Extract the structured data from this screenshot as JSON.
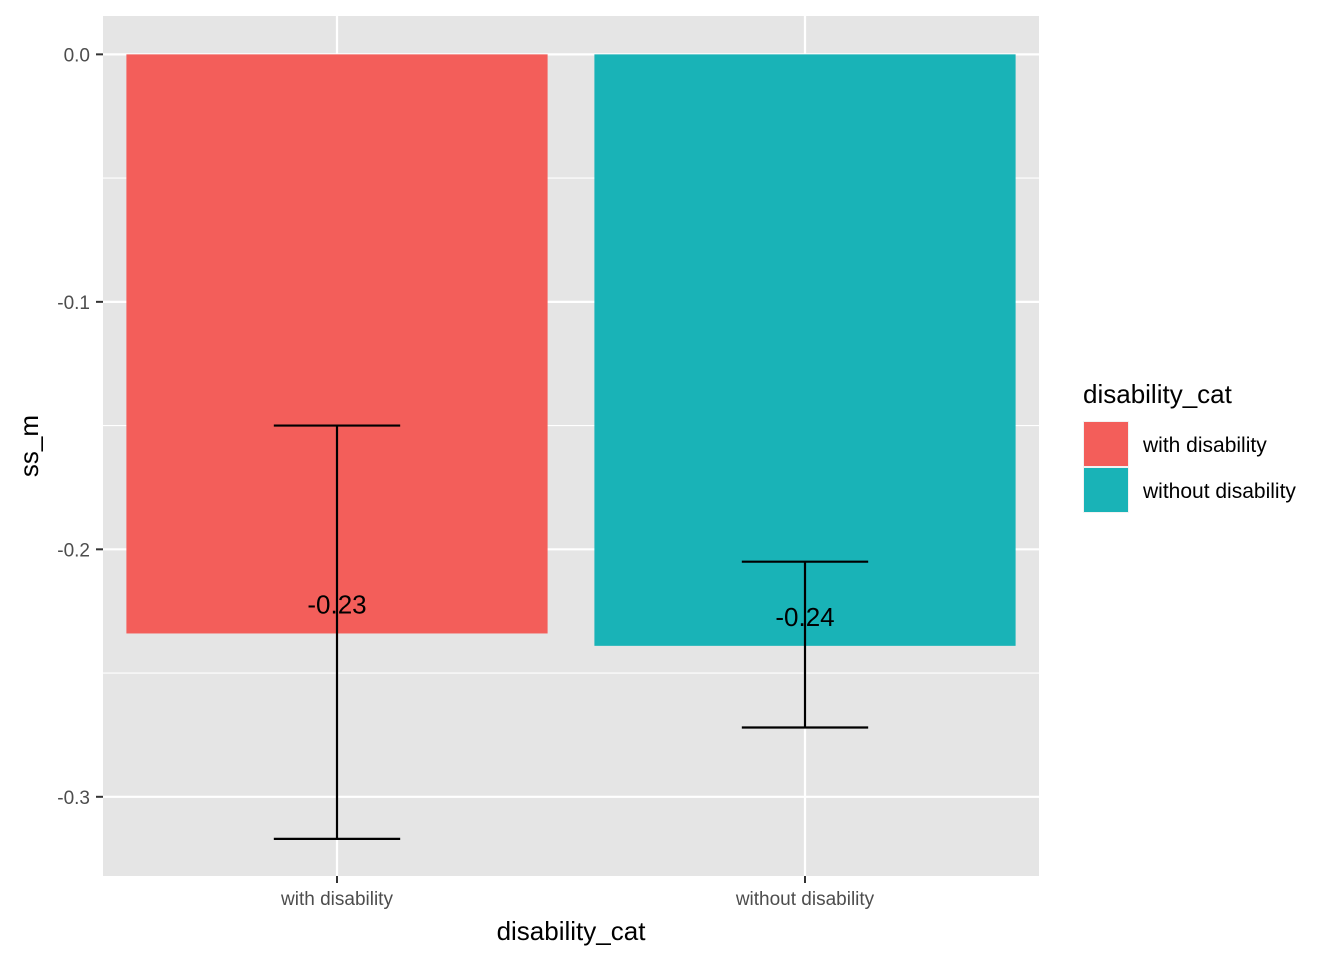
{
  "chart_data": {
    "type": "bar",
    "xlabel": "disability_cat",
    "ylabel": "ss_m",
    "categories": [
      "with disability",
      "without disability"
    ],
    "values": [
      -0.234,
      -0.239
    ],
    "data_labels": [
      "-0.23",
      "-0.24"
    ],
    "error_bars": [
      {
        "lower": -0.317,
        "upper": -0.15
      },
      {
        "lower": -0.272,
        "upper": -0.205
      }
    ],
    "ylim": [
      -0.332,
      0.0155
    ],
    "yticks": [
      0.0,
      -0.1,
      -0.2,
      -0.3
    ],
    "ytick_labels": [
      "0.0",
      "-0.1",
      "-0.2",
      "-0.3"
    ],
    "grid": true,
    "legend": {
      "title": "disability_cat",
      "placement": "right",
      "items": [
        "with disability",
        "without disability"
      ]
    },
    "colors": [
      "#F35E5A",
      "#19B3B7"
    ],
    "panel_background": "#E5E5E5",
    "grid_color": "#FFFFFF"
  }
}
